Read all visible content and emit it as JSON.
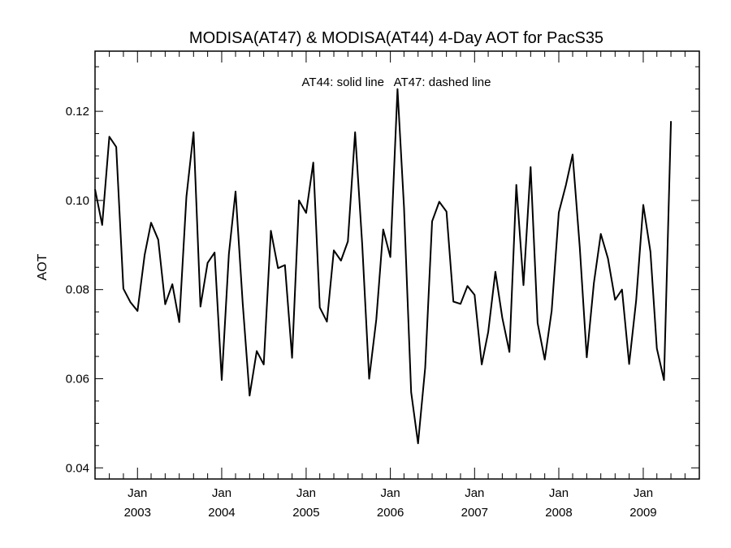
{
  "chart_data": {
    "type": "line",
    "title": "MODISA(AT47) & MODISA(AT44) 4-Day AOT for PacS35",
    "annotation": "AT44: solid line   AT47: dashed line",
    "xlabel": "",
    "ylabel": "AOT",
    "xlim": [
      "2002-07-01",
      "2009-09-01"
    ],
    "ylim": [
      0.0375,
      0.1335
    ],
    "grid": false,
    "y_ticks": [
      {
        "value": 0.04,
        "label": "0.04"
      },
      {
        "value": 0.06,
        "label": "0.06"
      },
      {
        "value": 0.08,
        "label": "0.08"
      },
      {
        "value": 0.1,
        "label": "0.10"
      },
      {
        "value": 0.12,
        "label": "0.12"
      }
    ],
    "x_ticks": [
      {
        "value": "2003-01-01",
        "month": "Jan",
        "year": "2003"
      },
      {
        "value": "2004-01-01",
        "month": "Jan",
        "year": "2004"
      },
      {
        "value": "2005-01-01",
        "month": "Jan",
        "year": "2005"
      },
      {
        "value": "2006-01-01",
        "month": "Jan",
        "year": "2006"
      },
      {
        "value": "2007-01-01",
        "month": "Jan",
        "year": "2007"
      },
      {
        "value": "2008-01-01",
        "month": "Jan",
        "year": "2008"
      },
      {
        "value": "2009-01-01",
        "month": "Jan",
        "year": "2009"
      }
    ],
    "series": [
      {
        "style": "solid",
        "points": [
          [
            "2002-07-01",
            0.1025
          ],
          [
            "2002-08-01",
            0.0945
          ],
          [
            "2002-09-01",
            0.1143
          ],
          [
            "2002-10-01",
            0.112
          ],
          [
            "2002-11-01",
            0.0802
          ],
          [
            "2002-12-01",
            0.0772
          ],
          [
            "2003-01-01",
            0.0752
          ],
          [
            "2003-02-01",
            0.0878
          ],
          [
            "2003-03-01",
            0.095
          ],
          [
            "2003-04-01",
            0.0912
          ],
          [
            "2003-05-01",
            0.0767
          ],
          [
            "2003-06-01",
            0.0812
          ],
          [
            "2003-07-01",
            0.0727
          ],
          [
            "2003-08-01",
            0.1008
          ],
          [
            "2003-09-01",
            0.1153
          ],
          [
            "2003-10-01",
            0.0762
          ],
          [
            "2003-11-01",
            0.086
          ],
          [
            "2003-12-01",
            0.0883
          ],
          [
            "2004-01-01",
            0.0597
          ],
          [
            "2004-02-01",
            0.088
          ],
          [
            "2004-03-01",
            0.102
          ],
          [
            "2004-04-01",
            0.077
          ],
          [
            "2004-05-01",
            0.0562
          ],
          [
            "2004-06-01",
            0.0662
          ],
          [
            "2004-07-01",
            0.0632
          ],
          [
            "2004-08-01",
            0.0932
          ],
          [
            "2004-09-01",
            0.0848
          ],
          [
            "2004-10-01",
            0.0855
          ],
          [
            "2004-11-01",
            0.0647
          ],
          [
            "2004-12-01",
            0.1
          ],
          [
            "2005-01-01",
            0.0972
          ],
          [
            "2005-02-01",
            0.1085
          ],
          [
            "2005-03-01",
            0.076
          ],
          [
            "2005-04-01",
            0.0728
          ],
          [
            "2005-05-01",
            0.0888
          ],
          [
            "2005-06-01",
            0.0865
          ],
          [
            "2005-07-01",
            0.0908
          ],
          [
            "2005-08-01",
            0.1153
          ],
          [
            "2005-09-01",
            0.09
          ],
          [
            "2005-10-01",
            0.06
          ],
          [
            "2005-11-01",
            0.0733
          ],
          [
            "2005-12-01",
            0.0935
          ],
          [
            "2006-01-01",
            0.0873
          ],
          [
            "2006-02-01",
            0.125
          ],
          [
            "2006-03-01",
            0.0985
          ],
          [
            "2006-04-01",
            0.057
          ],
          [
            "2006-05-01",
            0.0455
          ],
          [
            "2006-06-01",
            0.0625
          ],
          [
            "2006-07-01",
            0.0953
          ],
          [
            "2006-08-01",
            0.0997
          ],
          [
            "2006-09-01",
            0.0975
          ],
          [
            "2006-10-01",
            0.0773
          ],
          [
            "2006-11-01",
            0.0768
          ],
          [
            "2006-12-01",
            0.0808
          ],
          [
            "2007-01-01",
            0.0788
          ],
          [
            "2007-02-01",
            0.0632
          ],
          [
            "2007-03-01",
            0.0705
          ],
          [
            "2007-04-01",
            0.084
          ],
          [
            "2007-05-01",
            0.0737
          ],
          [
            "2007-06-01",
            0.066
          ],
          [
            "2007-07-01",
            0.1035
          ],
          [
            "2007-08-01",
            0.081
          ],
          [
            "2007-09-01",
            0.1075
          ],
          [
            "2007-10-01",
            0.0725
          ],
          [
            "2007-11-01",
            0.0643
          ],
          [
            "2007-12-01",
            0.0752
          ],
          [
            "2008-01-01",
            0.0973
          ],
          [
            "2008-02-01",
            0.1035
          ],
          [
            "2008-03-01",
            0.1103
          ],
          [
            "2008-04-01",
            0.0895
          ],
          [
            "2008-05-01",
            0.0648
          ],
          [
            "2008-06-01",
            0.0815
          ],
          [
            "2008-07-01",
            0.0925
          ],
          [
            "2008-08-01",
            0.087
          ],
          [
            "2008-09-01",
            0.0777
          ],
          [
            "2008-10-01",
            0.08
          ],
          [
            "2008-11-01",
            0.0633
          ],
          [
            "2008-12-01",
            0.0775
          ],
          [
            "2009-01-01",
            0.099
          ],
          [
            "2009-02-01",
            0.0885
          ],
          [
            "2009-03-01",
            0.0668
          ],
          [
            "2009-04-01",
            0.0597
          ],
          [
            "2009-05-01",
            0.1178
          ]
        ]
      }
    ]
  }
}
